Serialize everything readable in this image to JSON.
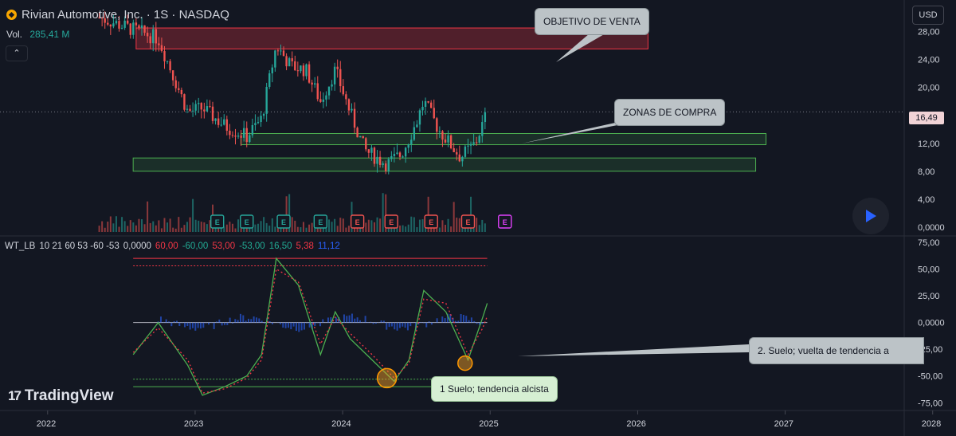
{
  "header": {
    "title": "Rivian Automotive, Inc. · 1S · NASDAQ",
    "vol_label": "Vol.",
    "vol_value": "285,41 M",
    "collapse_icon": "chevron-up-icon",
    "currency": "USD",
    "last_price": "16,49"
  },
  "oscillator": {
    "name": "WT_LB",
    "params": "10 21 60 53 -60 -53",
    "values": [
      {
        "text": "0,0000",
        "color": "#d1d4dc"
      },
      {
        "text": "60,00",
        "color": "#f23645"
      },
      {
        "text": "-60,00",
        "color": "#22ab94"
      },
      {
        "text": "53,00",
        "color": "#f23645"
      },
      {
        "text": "-53,00",
        "color": "#22ab94"
      },
      {
        "text": "16,50",
        "color": "#22ab94"
      },
      {
        "text": "5,38",
        "color": "#f23645"
      },
      {
        "text": "11,12",
        "color": "#2962ff"
      }
    ]
  },
  "annotations": {
    "objetivo": "OBJETIVO DE VENTA",
    "zonas": "ZONAS DE COMPRA",
    "suelo1": "1 Suelo; tendencia alcista",
    "suelo2": "2. Suelo; vuelta de tendencia a"
  },
  "branding": {
    "name": "TradingView"
  },
  "colors": {
    "background": "#131722",
    "up": "#26a69a",
    "down": "#ef5350",
    "sell_zone": "#f23645",
    "buy_zone": "#4caf50",
    "wt1": "#4caf50",
    "wt2": "#f23645",
    "histogram": "#2962ff"
  },
  "chart_data": [
    {
      "type": "candlestick",
      "title": "Rivian Automotive, Inc. · 1S · NASDAQ",
      "x_ticks": [
        "2022",
        "2023",
        "2024",
        "2025",
        "2026",
        "2027",
        "2028"
      ],
      "y_ticks": [
        "28,00",
        "24,00",
        "20,00",
        "16,00",
        "12,00",
        "8,00",
        "4,00",
        "0,0000"
      ],
      "last_price": 16.49,
      "xlim": [
        2021.85,
        2028.05
      ],
      "ylim": [
        0,
        32.5
      ],
      "trend_approx": [
        {
          "x": 2022.35,
          "close": 30.0
        },
        {
          "x": 2022.55,
          "close": 28.5
        },
        {
          "x": 2022.75,
          "close": 27.0
        },
        {
          "x": 2022.95,
          "close": 16.5
        },
        {
          "x": 2023.05,
          "close": 17.0
        },
        {
          "x": 2023.2,
          "close": 14.5
        },
        {
          "x": 2023.35,
          "close": 13.0
        },
        {
          "x": 2023.45,
          "close": 15.5
        },
        {
          "x": 2023.55,
          "close": 26.0
        },
        {
          "x": 2023.65,
          "close": 23.0
        },
        {
          "x": 2023.75,
          "close": 22.5
        },
        {
          "x": 2023.85,
          "close": 18.0
        },
        {
          "x": 2023.95,
          "close": 22.5
        },
        {
          "x": 2024.05,
          "close": 16.5
        },
        {
          "x": 2024.15,
          "close": 11.0
        },
        {
          "x": 2024.3,
          "close": 9.0
        },
        {
          "x": 2024.4,
          "close": 10.5
        },
        {
          "x": 2024.5,
          "close": 15.0
        },
        {
          "x": 2024.55,
          "close": 18.0
        },
        {
          "x": 2024.65,
          "close": 14.0
        },
        {
          "x": 2024.8,
          "close": 10.0
        },
        {
          "x": 2024.9,
          "close": 12.0
        },
        {
          "x": 2024.98,
          "close": 16.49
        }
      ],
      "earnings_markers": [
        {
          "x": 2023.15,
          "color": "#26a69a"
        },
        {
          "x": 2023.35,
          "color": "#26a69a"
        },
        {
          "x": 2023.6,
          "color": "#26a69a"
        },
        {
          "x": 2023.85,
          "color": "#26a69a"
        },
        {
          "x": 2024.1,
          "color": "#ef5350"
        },
        {
          "x": 2024.33,
          "color": "#ef5350"
        },
        {
          "x": 2024.6,
          "color": "#ef5350"
        },
        {
          "x": 2024.85,
          "color": "#ef5350"
        },
        {
          "x": 2025.1,
          "color": "#e040fb"
        }
      ],
      "earnings_label": "E",
      "zones": [
        {
          "kind": "sell",
          "from": 25.5,
          "to": 28.5,
          "x_from": 2022.6,
          "x_to": 2026.07
        },
        {
          "kind": "buy",
          "from": 11.8,
          "to": 13.4,
          "x_from": 2023.31,
          "x_to": 2026.87
        },
        {
          "kind": "buy",
          "from": 8.0,
          "to": 9.9,
          "x_from": 2022.58,
          "x_to": 2026.8
        }
      ]
    },
    {
      "type": "line",
      "title": "WT_LB 10 21 60 53 -60 -53",
      "y_ticks": [
        "75,00",
        "50,00",
        "25,00",
        "0,0000",
        "-25,00",
        "-50,00",
        "-75,00"
      ],
      "ylim": [
        -80,
        78
      ],
      "levels": [
        60,
        53,
        0,
        -53,
        -60
      ],
      "series": [
        {
          "name": "WT1",
          "points": [
            [
              2022.58,
              -30
            ],
            [
              2022.75,
              0
            ],
            [
              2022.95,
              -40
            ],
            [
              2023.05,
              -68
            ],
            [
              2023.2,
              -60
            ],
            [
              2023.35,
              -50
            ],
            [
              2023.45,
              -30
            ],
            [
              2023.55,
              60
            ],
            [
              2023.7,
              35
            ],
            [
              2023.85,
              -30
            ],
            [
              2023.95,
              10
            ],
            [
              2024.05,
              -15
            ],
            [
              2024.2,
              -35
            ],
            [
              2024.35,
              -55
            ],
            [
              2024.45,
              -35
            ],
            [
              2024.55,
              30
            ],
            [
              2024.7,
              10
            ],
            [
              2024.85,
              -35
            ],
            [
              2024.95,
              5
            ],
            [
              2024.98,
              18
            ]
          ]
        },
        {
          "name": "WT2",
          "points": [
            [
              2022.58,
              -28
            ],
            [
              2022.75,
              -5
            ],
            [
              2022.95,
              -35
            ],
            [
              2023.05,
              -66
            ],
            [
              2023.2,
              -62
            ],
            [
              2023.35,
              -52
            ],
            [
              2023.45,
              -35
            ],
            [
              2023.55,
              50
            ],
            [
              2023.7,
              38
            ],
            [
              2023.85,
              -20
            ],
            [
              2023.95,
              5
            ],
            [
              2024.05,
              -10
            ],
            [
              2024.2,
              -30
            ],
            [
              2024.35,
              -52
            ],
            [
              2024.45,
              -38
            ],
            [
              2024.55,
              22
            ],
            [
              2024.7,
              18
            ],
            [
              2024.85,
              -30
            ],
            [
              2024.95,
              -5
            ],
            [
              2024.98,
              6
            ]
          ]
        }
      ],
      "circles": [
        {
          "x": 2024.3,
          "y": -52
        },
        {
          "x": 2024.83,
          "y": -38
        }
      ]
    }
  ]
}
